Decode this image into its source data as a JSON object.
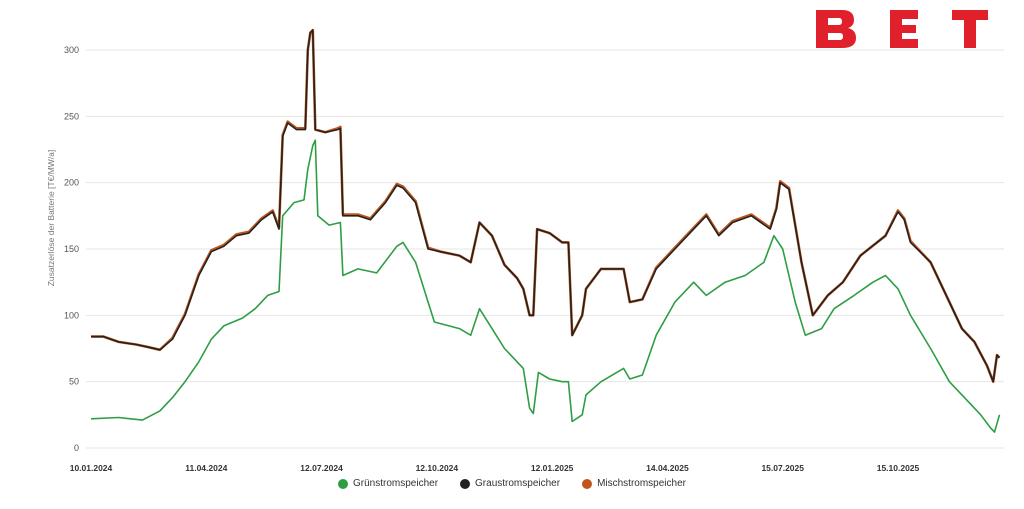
{
  "logo": {
    "text": "BET",
    "color": "#e0202a"
  },
  "colors": {
    "gruen": "#2e9e44",
    "grau": "#222222",
    "misch": "#c0561c"
  },
  "chart_data": {
    "type": "line",
    "ylabel": "Zusatzerlöse der Batterie [T€/MW/a]",
    "ylim": [
      0,
      320
    ],
    "yticks": [
      0,
      50,
      100,
      150,
      200,
      250,
      300
    ],
    "xticks": [
      "10.01.2024",
      "11.04.2024",
      "12.07.2024",
      "12.10.2024",
      "12.01.2025",
      "14.04.2025",
      "15.07.2025",
      "15.10.2025"
    ],
    "x_start": "10.01.2024",
    "x_end": "24.12.2025",
    "legend_position": "bottom-center",
    "grid": true,
    "series": [
      {
        "name": "Grünstromspeicher",
        "color": "#2e9e44",
        "points": [
          [
            "10.01.2024",
            22
          ],
          [
            "01.02.2024",
            23
          ],
          [
            "20.02.2024",
            21
          ],
          [
            "05.03.2024",
            28
          ],
          [
            "15.03.2024",
            38
          ],
          [
            "25.03.2024",
            50
          ],
          [
            "05.04.2024",
            65
          ],
          [
            "15.04.2024",
            82
          ],
          [
            "25.04.2024",
            92
          ],
          [
            "10.05.2024",
            98
          ],
          [
            "20.05.2024",
            105
          ],
          [
            "30.05.2024",
            115
          ],
          [
            "08.06.2024",
            118
          ],
          [
            "11.06.2024",
            175
          ],
          [
            "20.06.2024",
            185
          ],
          [
            "28.06.2024",
            187
          ],
          [
            "01.07.2024",
            210
          ],
          [
            "05.07.2024",
            228
          ],
          [
            "07.07.2024",
            232
          ],
          [
            "09.07.2024",
            175
          ],
          [
            "18.07.2024",
            168
          ],
          [
            "27.07.2024",
            170
          ],
          [
            "29.07.2024",
            130
          ],
          [
            "10.08.2024",
            135
          ],
          [
            "25.08.2024",
            132
          ],
          [
            "10.09.2024",
            152
          ],
          [
            "15.09.2024",
            155
          ],
          [
            "25.09.2024",
            140
          ],
          [
            "05.10.2024",
            110
          ],
          [
            "10.10.2024",
            95
          ],
          [
            "30.10.2024",
            90
          ],
          [
            "08.11.2024",
            85
          ],
          [
            "15.11.2024",
            105
          ],
          [
            "25.11.2024",
            90
          ],
          [
            "05.12.2024",
            75
          ],
          [
            "20.12.2024",
            60
          ],
          [
            "25.12.2024",
            30
          ],
          [
            "28.12.2024",
            26
          ],
          [
            "01.01.2025",
            57
          ],
          [
            "10.01.2025",
            52
          ],
          [
            "20.01.2025",
            50
          ],
          [
            "25.01.2025",
            50
          ],
          [
            "28.01.2025",
            20
          ],
          [
            "05.02.2025",
            25
          ],
          [
            "08.02.2025",
            40
          ],
          [
            "20.02.2025",
            50
          ],
          [
            "10.03.2025",
            60
          ],
          [
            "15.03.2025",
            52
          ],
          [
            "25.03.2025",
            55
          ],
          [
            "05.04.2025",
            85
          ],
          [
            "20.04.2025",
            110
          ],
          [
            "05.05.2025",
            125
          ],
          [
            "15.05.2025",
            115
          ],
          [
            "30.05.2025",
            125
          ],
          [
            "15.06.2025",
            130
          ],
          [
            "30.06.2025",
            140
          ],
          [
            "08.07.2025",
            160
          ],
          [
            "15.07.2025",
            150
          ],
          [
            "25.07.2025",
            110
          ],
          [
            "02.08.2025",
            85
          ],
          [
            "15.08.2025",
            90
          ],
          [
            "25.08.2025",
            105
          ],
          [
            "10.09.2025",
            115
          ],
          [
            "25.09.2025",
            125
          ],
          [
            "05.10.2025",
            130
          ],
          [
            "15.10.2025",
            120
          ],
          [
            "25.10.2025",
            100
          ],
          [
            "10.11.2025",
            75
          ],
          [
            "25.11.2025",
            50
          ],
          [
            "10.12.2025",
            35
          ],
          [
            "20.12.2025",
            25
          ],
          [
            "28.12.2025",
            15
          ],
          [
            "31.12.2025",
            12
          ],
          [
            "04.01.2026",
            25
          ]
        ]
      },
      {
        "name": "Graustromspeicher",
        "color": "#222222",
        "points": [
          [
            "10.01.2024",
            84
          ],
          [
            "20.01.2024",
            84
          ],
          [
            "01.02.2024",
            80
          ],
          [
            "15.02.2024",
            78
          ],
          [
            "25.02.2024",
            76
          ],
          [
            "05.03.2024",
            74
          ],
          [
            "15.03.2024",
            82
          ],
          [
            "25.03.2024",
            100
          ],
          [
            "05.04.2024",
            130
          ],
          [
            "15.04.2024",
            148
          ],
          [
            "25.04.2024",
            152
          ],
          [
            "05.05.2024",
            160
          ],
          [
            "15.05.2024",
            162
          ],
          [
            "25.05.2024",
            172
          ],
          [
            "03.06.2024",
            178
          ],
          [
            "08.06.2024",
            165
          ],
          [
            "11.06.2024",
            235
          ],
          [
            "15.06.2024",
            245
          ],
          [
            "22.06.2024",
            240
          ],
          [
            "29.06.2024",
            240
          ],
          [
            "01.07.2024",
            300
          ],
          [
            "03.07.2024",
            313
          ],
          [
            "05.07.2024",
            315
          ],
          [
            "07.07.2024",
            240
          ],
          [
            "15.07.2024",
            238
          ],
          [
            "25.07.2024",
            240
          ],
          [
            "27.07.2024",
            241
          ],
          [
            "29.07.2024",
            175
          ],
          [
            "10.08.2024",
            175
          ],
          [
            "20.08.2024",
            172
          ],
          [
            "01.09.2024",
            185
          ],
          [
            "10.09.2024",
            198
          ],
          [
            "15.09.2024",
            196
          ],
          [
            "25.09.2024",
            185
          ],
          [
            "05.10.2024",
            150
          ],
          [
            "15.10.2024",
            148
          ],
          [
            "30.10.2024",
            145
          ],
          [
            "08.11.2024",
            140
          ],
          [
            "15.11.2024",
            170
          ],
          [
            "25.11.2024",
            160
          ],
          [
            "05.12.2024",
            138
          ],
          [
            "15.12.2024",
            128
          ],
          [
            "20.12.2024",
            120
          ],
          [
            "25.12.2024",
            100
          ],
          [
            "28.12.2024",
            100
          ],
          [
            "31.12.2024",
            165
          ],
          [
            "10.01.2025",
            162
          ],
          [
            "20.01.2025",
            155
          ],
          [
            "25.01.2025",
            155
          ],
          [
            "28.01.2025",
            85
          ],
          [
            "05.02.2025",
            100
          ],
          [
            "08.02.2025",
            120
          ],
          [
            "20.02.2025",
            135
          ],
          [
            "10.03.2025",
            135
          ],
          [
            "15.03.2025",
            110
          ],
          [
            "25.03.2025",
            112
          ],
          [
            "05.04.2025",
            135
          ],
          [
            "20.04.2025",
            150
          ],
          [
            "05.05.2025",
            165
          ],
          [
            "15.05.2025",
            175
          ],
          [
            "25.05.2025",
            160
          ],
          [
            "05.06.2025",
            170
          ],
          [
            "20.06.2025",
            175
          ],
          [
            "05.07.2025",
            165
          ],
          [
            "10.07.2025",
            180
          ],
          [
            "13.07.2025",
            200
          ],
          [
            "20.07.2025",
            195
          ],
          [
            "30.07.2025",
            140
          ],
          [
            "08.08.2025",
            100
          ],
          [
            "20.08.2025",
            115
          ],
          [
            "01.09.2025",
            125
          ],
          [
            "15.09.2025",
            145
          ],
          [
            "05.10.2025",
            160
          ],
          [
            "15.10.2025",
            178
          ],
          [
            "20.10.2025",
            172
          ],
          [
            "25.10.2025",
            155
          ],
          [
            "10.11.2025",
            140
          ],
          [
            "25.11.2025",
            110
          ],
          [
            "05.12.2025",
            90
          ],
          [
            "15.12.2025",
            80
          ],
          [
            "25.12.2025",
            62
          ],
          [
            "30.12.2025",
            50
          ],
          [
            "02.01.2026",
            70
          ],
          [
            "04.01.2026",
            68
          ]
        ]
      },
      {
        "name": "Mischstromspeicher",
        "color": "#c0561c",
        "points": [
          [
            "10.01.2024",
            84
          ],
          [
            "20.01.2024",
            84
          ],
          [
            "01.02.2024",
            80
          ],
          [
            "15.02.2024",
            78
          ],
          [
            "25.02.2024",
            76
          ],
          [
            "05.03.2024",
            74
          ],
          [
            "15.03.2024",
            83
          ],
          [
            "25.03.2024",
            101
          ],
          [
            "05.04.2024",
            131
          ],
          [
            "15.04.2024",
            149
          ],
          [
            "25.04.2024",
            153
          ],
          [
            "05.05.2024",
            161
          ],
          [
            "15.05.2024",
            163
          ],
          [
            "25.05.2024",
            173
          ],
          [
            "03.06.2024",
            179
          ],
          [
            "08.06.2024",
            166
          ],
          [
            "11.06.2024",
            236
          ],
          [
            "15.06.2024",
            246
          ],
          [
            "22.06.2024",
            241
          ],
          [
            "29.06.2024",
            241
          ],
          [
            "01.07.2024",
            300
          ],
          [
            "03.07.2024",
            313
          ],
          [
            "05.07.2024",
            315
          ],
          [
            "07.07.2024",
            240
          ],
          [
            "15.07.2024",
            238
          ],
          [
            "25.07.2024",
            241
          ],
          [
            "27.07.2024",
            242
          ],
          [
            "29.07.2024",
            176
          ],
          [
            "10.08.2024",
            176
          ],
          [
            "20.08.2024",
            173
          ],
          [
            "01.09.2024",
            186
          ],
          [
            "10.09.2024",
            199
          ],
          [
            "15.09.2024",
            197
          ],
          [
            "25.09.2024",
            186
          ],
          [
            "05.10.2024",
            151
          ],
          [
            "15.10.2024",
            148
          ],
          [
            "30.10.2024",
            145
          ],
          [
            "08.11.2024",
            140
          ],
          [
            "15.11.2024",
            170
          ],
          [
            "25.11.2024",
            160
          ],
          [
            "05.12.2024",
            138
          ],
          [
            "15.12.2024",
            128
          ],
          [
            "20.12.2024",
            120
          ],
          [
            "25.12.2024",
            100
          ],
          [
            "28.12.2024",
            100
          ],
          [
            "31.12.2024",
            165
          ],
          [
            "10.01.2025",
            162
          ],
          [
            "20.01.2025",
            155
          ],
          [
            "25.01.2025",
            155
          ],
          [
            "28.01.2025",
            85
          ],
          [
            "05.02.2025",
            100
          ],
          [
            "08.02.2025",
            120
          ],
          [
            "20.02.2025",
            135
          ],
          [
            "10.03.2025",
            135
          ],
          [
            "15.03.2025",
            110
          ],
          [
            "25.03.2025",
            112
          ],
          [
            "05.04.2025",
            136
          ],
          [
            "20.04.2025",
            151
          ],
          [
            "05.05.2025",
            166
          ],
          [
            "15.05.2025",
            176
          ],
          [
            "25.05.2025",
            161
          ],
          [
            "05.06.2025",
            171
          ],
          [
            "20.06.2025",
            176
          ],
          [
            "05.07.2025",
            166
          ],
          [
            "10.07.2025",
            181
          ],
          [
            "13.07.2025",
            201
          ],
          [
            "20.07.2025",
            196
          ],
          [
            "30.07.2025",
            140
          ],
          [
            "08.08.2025",
            100
          ],
          [
            "20.08.2025",
            115
          ],
          [
            "01.09.2025",
            125
          ],
          [
            "15.09.2025",
            145
          ],
          [
            "05.10.2025",
            160
          ],
          [
            "15.10.2025",
            179
          ],
          [
            "20.10.2025",
            173
          ],
          [
            "25.10.2025",
            156
          ],
          [
            "10.11.2025",
            140
          ],
          [
            "25.11.2025",
            110
          ],
          [
            "05.12.2025",
            90
          ],
          [
            "15.12.2025",
            80
          ],
          [
            "25.12.2025",
            62
          ],
          [
            "30.12.2025",
            50
          ],
          [
            "02.01.2026",
            70
          ],
          [
            "04.01.2026",
            68
          ]
        ]
      }
    ]
  }
}
